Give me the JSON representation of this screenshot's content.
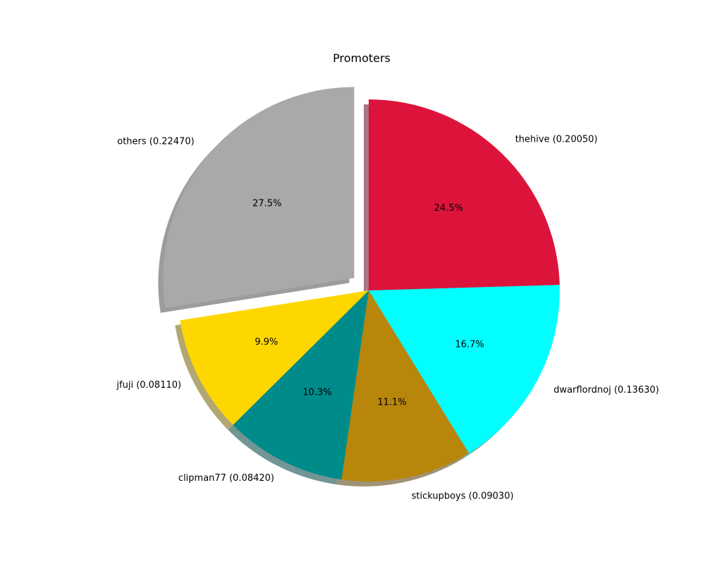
{
  "chart_data": {
    "type": "pie",
    "title": "Promoters",
    "start_angle_deg": 90,
    "direction": "clockwise",
    "shadow": true,
    "slices": [
      {
        "label": "thehive (0.20050)",
        "value": 0.2005,
        "percent": "24.5%",
        "color": "#dc143c",
        "explode": 0
      },
      {
        "label": "dwarflordnoj (0.13630)",
        "value": 0.1363,
        "percent": "16.7%",
        "color": "#00ffff",
        "explode": 0
      },
      {
        "label": "stickupboys (0.09030)",
        "value": 0.0903,
        "percent": "11.1%",
        "color": "#b8860b",
        "explode": 0
      },
      {
        "label": "clipman77 (0.08420)",
        "value": 0.0842,
        "percent": "10.3%",
        "color": "#008b8b",
        "explode": 0
      },
      {
        "label": "jfuji (0.08110)",
        "value": 0.0811,
        "percent": "9.9%",
        "color": "#ffd700",
        "explode": 0
      },
      {
        "label": "others (0.22470)",
        "value": 0.2247,
        "percent": "27.5%",
        "color": "#a9a9a9",
        "explode": 0.1
      }
    ]
  }
}
